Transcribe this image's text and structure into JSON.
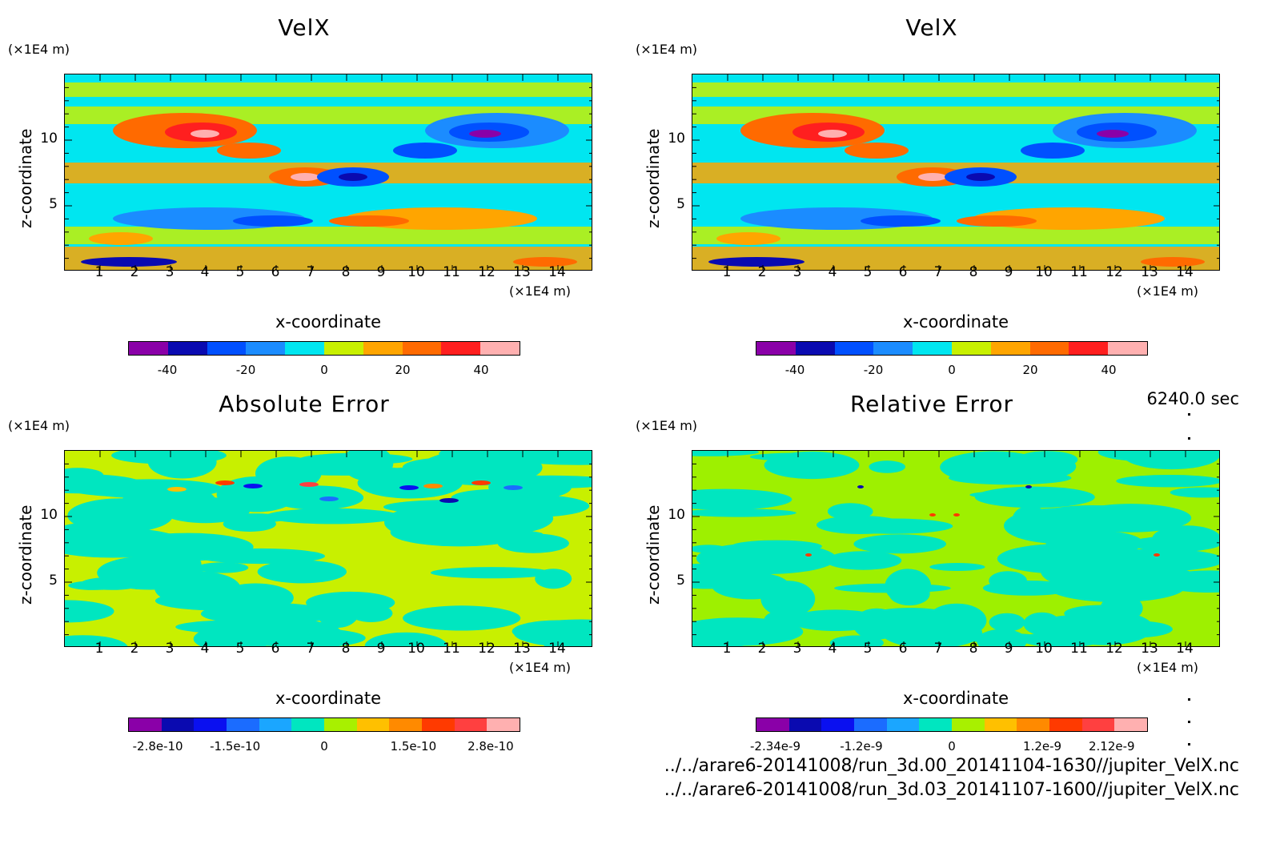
{
  "colors": {
    "palette": [
      "#8a00a8",
      "#0a0ab0",
      "#0050ff",
      "#1b8cff",
      "#00e6f0",
      "#c8f000",
      "#ffa500",
      "#ff6a00",
      "#ff1f1f",
      "#ffb0b0"
    ],
    "error_palette": [
      "#8a00a8",
      "#0a0ab0",
      "#0a10f0",
      "#1b6cff",
      "#1ba6ff",
      "#00e6c0",
      "#a8f000",
      "#ffc000",
      "#ff8a00",
      "#ff3a00",
      "#ff4040",
      "#ffb0b0"
    ]
  },
  "time_label": "6240.0 sec",
  "file_lines": [
    "../../arare6-20141008/run_3d.00_20141104-1630//jupiter_VelX.nc",
    "../../arare6-20141008/run_3d.03_20141107-1600//jupiter_VelX.nc"
  ],
  "chart_data": [
    {
      "type": "heatmap",
      "title": "VelX",
      "xlabel": "x-coordinate",
      "ylabel": "z-coordinate",
      "x_unit": "(×1E4 m)",
      "y_unit": "(×1E4 m)",
      "xlim": [
        0,
        15
      ],
      "ylim": [
        0,
        15
      ],
      "x_ticks": [
        "1",
        "2",
        "3",
        "4",
        "5",
        "6",
        "7",
        "8",
        "9",
        "10",
        "11",
        "12",
        "13",
        "14"
      ],
      "y_ticks": [
        "5",
        "10"
      ],
      "colorbar": {
        "range": [
          -50,
          50
        ],
        "tick_labels": [
          "-40",
          "-20",
          "0",
          "20",
          "40"
        ]
      }
    },
    {
      "type": "heatmap",
      "title": "VelX",
      "xlabel": "x-coordinate",
      "ylabel": "z-coordinate",
      "x_unit": "(×1E4 m)",
      "y_unit": "(×1E4 m)",
      "xlim": [
        0,
        15
      ],
      "ylim": [
        0,
        15
      ],
      "x_ticks": [
        "1",
        "2",
        "3",
        "4",
        "5",
        "6",
        "7",
        "8",
        "9",
        "10",
        "11",
        "12",
        "13",
        "14"
      ],
      "y_ticks": [
        "5",
        "10"
      ],
      "colorbar": {
        "range": [
          -50,
          50
        ],
        "tick_labels": [
          "-40",
          "-20",
          "0",
          "20",
          "40"
        ]
      }
    },
    {
      "type": "heatmap",
      "title": "Absolute Error",
      "xlabel": "x-coordinate",
      "ylabel": "z-coordinate",
      "x_unit": "(×1E4 m)",
      "y_unit": "(×1E4 m)",
      "xlim": [
        0,
        15
      ],
      "ylim": [
        0,
        15
      ],
      "x_ticks": [
        "1",
        "2",
        "3",
        "4",
        "5",
        "6",
        "7",
        "8",
        "9",
        "10",
        "11",
        "12",
        "13",
        "14"
      ],
      "y_ticks": [
        "5",
        "10"
      ],
      "colorbar": {
        "range": [
          -3.3e-10,
          3.3e-10
        ],
        "tick_labels": [
          "-2.8e-10",
          "-1.5e-10",
          "0",
          "1.5e-10",
          "2.8e-10"
        ]
      }
    },
    {
      "type": "heatmap",
      "title": "Relative Error",
      "xlabel": "x-coordinate",
      "ylabel": "z-coordinate",
      "x_unit": "(×1E4 m)",
      "y_unit": "(×1E4 m)",
      "xlim": [
        0,
        15
      ],
      "ylim": [
        0,
        15
      ],
      "x_ticks": [
        "1",
        "2",
        "3",
        "4",
        "5",
        "6",
        "7",
        "8",
        "9",
        "10",
        "11",
        "12",
        "13",
        "14"
      ],
      "y_ticks": [
        "5",
        "10"
      ],
      "colorbar": {
        "range": [
          -2.6e-09,
          2.6e-09
        ],
        "tick_labels": [
          "-2.34e-9",
          "-1.2e-9",
          "0",
          "1.2e-9",
          "2.12e-9"
        ]
      }
    }
  ]
}
